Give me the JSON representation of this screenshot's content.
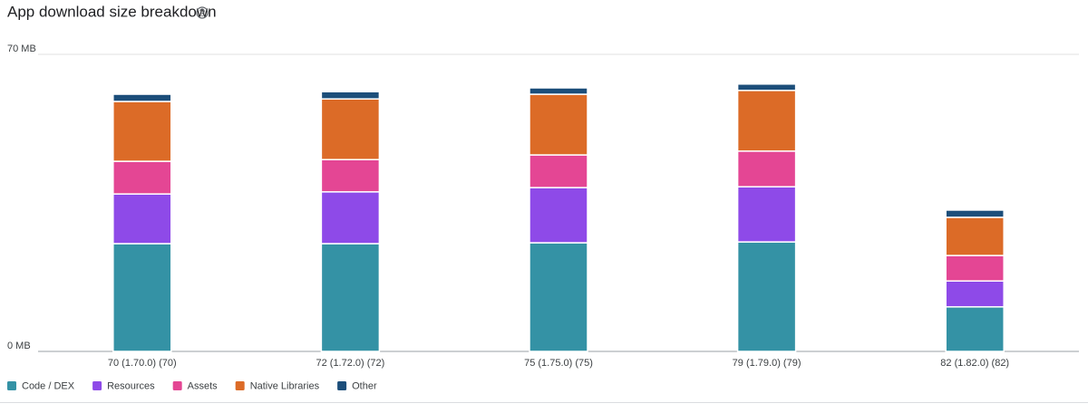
{
  "chart_data": {
    "type": "stacked_bar",
    "title": "App download size breakdown",
    "categories": [
      "70 (1.70.0) (70)",
      "72 (1.72.0) (72)",
      "75 (1.75.0) (75)",
      "79 (1.79.0) (79)",
      "82 (1.82.0) (82)"
    ],
    "series": [
      {
        "name": "Code / DEX",
        "color": "#3492a5",
        "values": [
          25.4,
          25.4,
          25.6,
          25.8,
          10.5
        ]
      },
      {
        "name": "Resources",
        "color": "#8e4ae8",
        "values": [
          11.7,
          12.2,
          13.0,
          13.0,
          6.1
        ]
      },
      {
        "name": "Assets",
        "color": "#e44694",
        "values": [
          7.7,
          7.6,
          7.7,
          8.4,
          6.0
        ]
      },
      {
        "name": "Native Libraries",
        "color": "#dc6b27",
        "values": [
          14.1,
          14.3,
          14.3,
          14.3,
          9.0
        ]
      },
      {
        "name": "Other",
        "color": "#1c4e7a",
        "values": [
          1.7,
          1.7,
          1.5,
          1.5,
          1.7
        ]
      }
    ],
    "ylim": [
      0,
      70
    ],
    "yticks": [
      {
        "value": 0,
        "label": "0 MB"
      },
      {
        "value": 70,
        "label": "70 MB"
      }
    ],
    "grid": true
  }
}
